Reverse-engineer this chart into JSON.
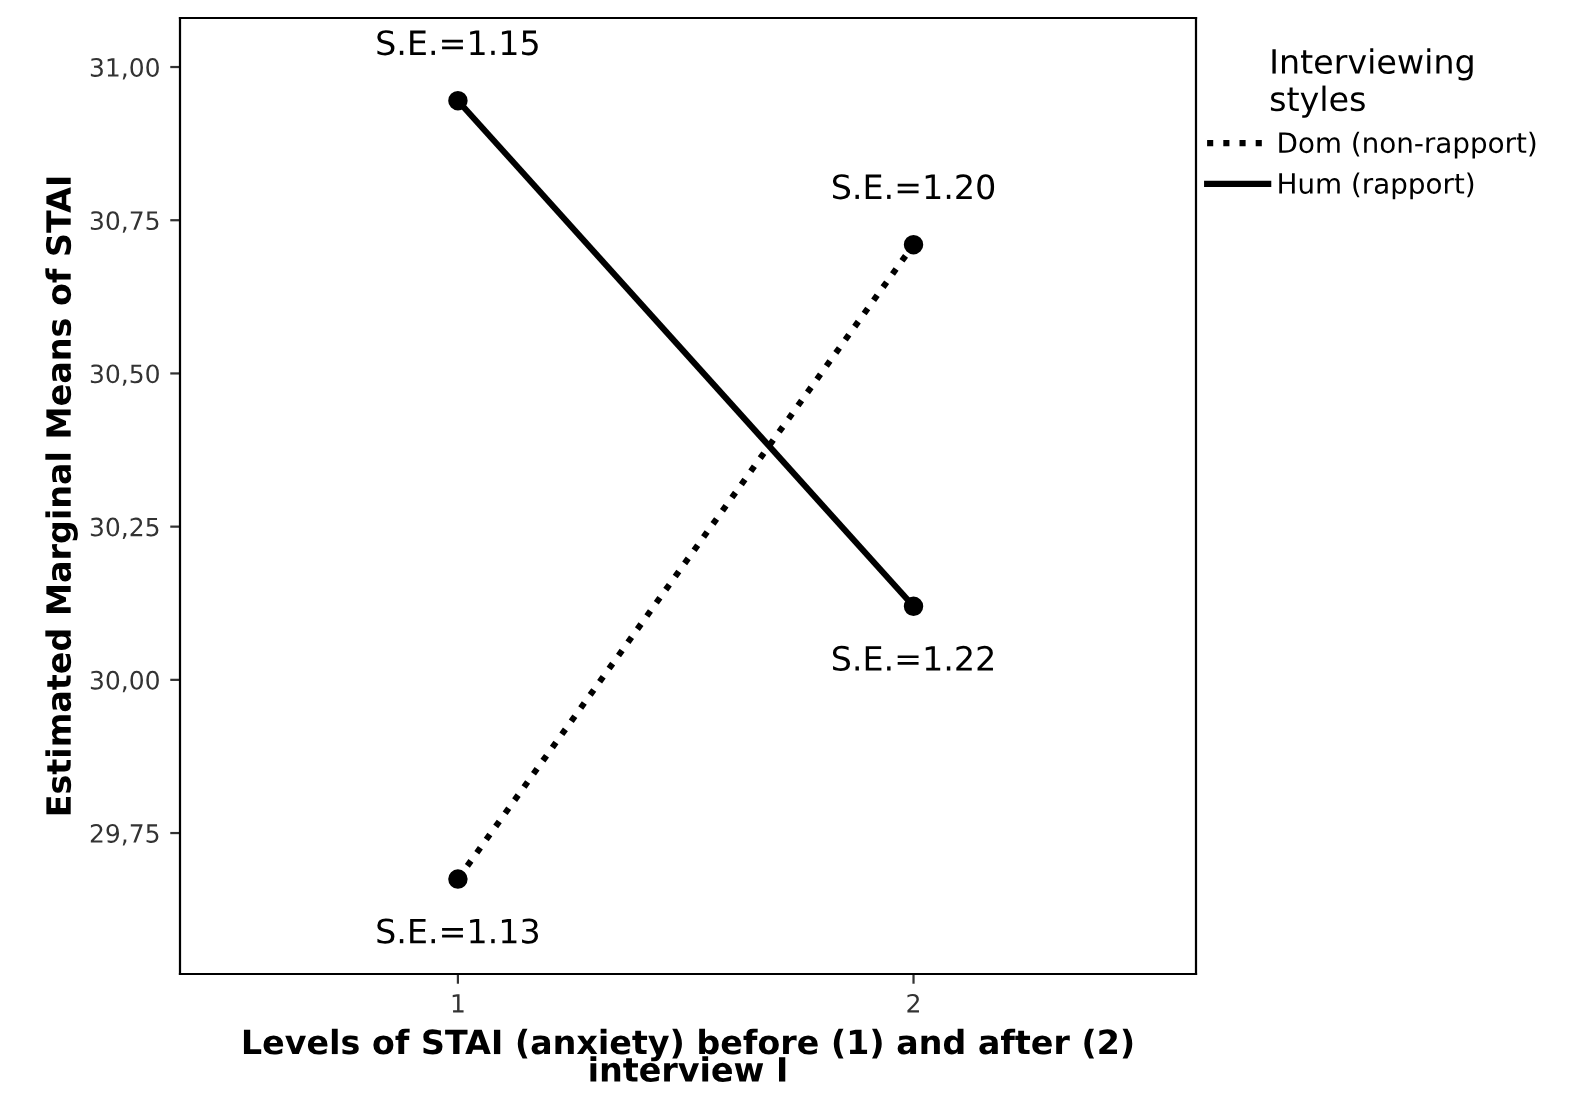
{
  "chart_data": {
    "type": "line",
    "xlabel": "Levels of STAI (anxiety) before (1) and after (2)\ninterview I",
    "ylabel": "Estimated Marginal Means of STAI",
    "legend_title": "Interviewing\nstyles",
    "categories": [
      "1",
      "2"
    ],
    "series": [
      {
        "name": "Dom (non-rapport)",
        "color": "#000000",
        "line_style": "dotted",
        "values": [
          29.675,
          30.71
        ]
      },
      {
        "name": "Hum (rapport)",
        "color": "#000000",
        "line_style": "solid",
        "values": [
          30.945,
          30.12
        ]
      }
    ],
    "ylim": [
      29.52,
      31.08
    ],
    "yticks": [
      {
        "value": 29.75,
        "label": "29,75"
      },
      {
        "value": 30.0,
        "label": "30,00"
      },
      {
        "value": 30.25,
        "label": "30,25"
      },
      {
        "value": 30.5,
        "label": "30,50"
      },
      {
        "value": 30.75,
        "label": "30,75"
      },
      {
        "value": 31.0,
        "label": "31,00"
      }
    ],
    "marker": "circle",
    "legend": "top right",
    "grid": false,
    "annotations": [
      {
        "text": "S.E.=1.15",
        "x": "1",
        "y": 30.945
      },
      {
        "text": "S.E.=1.22",
        "x": "2",
        "y": 30.12
      },
      {
        "text": "S.E.=1.13",
        "x": "1",
        "y": 29.675
      },
      {
        "text": "S.E.=1.20",
        "x": "2",
        "y": 30.71
      }
    ]
  }
}
